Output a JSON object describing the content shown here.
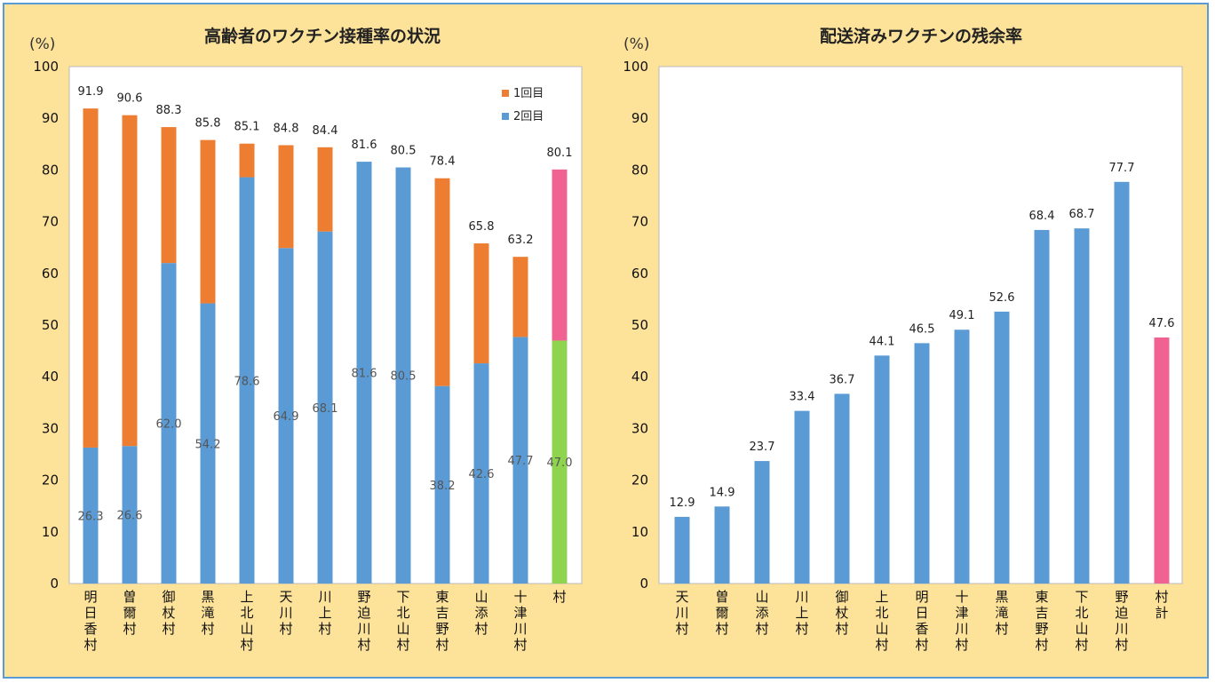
{
  "colors": {
    "background": "#fde29a",
    "border": "#5b9bd5",
    "dose1": "#ed7d31",
    "dose2": "#5b9bd5",
    "village_dose1": "#f06292",
    "village_dose2": "#8ed44f",
    "total_bar": "#f06292"
  },
  "chart_data": [
    {
      "type": "bar",
      "stacked": true,
      "title": "高齢者のワクチン接種率の状況",
      "ylabel": "(%)",
      "ylim": [
        0,
        100
      ],
      "yticks": [
        "0",
        "10",
        "20",
        "30",
        "40",
        "50",
        "60",
        "70",
        "80",
        "90",
        "100"
      ],
      "grid": false,
      "legend_position": "top-right",
      "categories": [
        "明日香村",
        "曽爾村",
        "御杖村",
        "黒滝村",
        "上北山村",
        "天川村",
        "川上村",
        "野迫川村",
        "下北山村",
        "東吉野村",
        "山添村",
        "十津川村",
        "村"
      ],
      "totals": [
        91.9,
        90.6,
        88.3,
        85.8,
        85.1,
        84.8,
        84.4,
        81.6,
        80.5,
        78.4,
        65.8,
        63.2,
        80.1
      ],
      "total_labels": [
        "91.9",
        "90.6",
        "88.3",
        "85.8",
        "85.1",
        "84.8",
        "84.4",
        "81.6",
        "80.5",
        "78.4",
        "65.8",
        "63.2",
        "80.1"
      ],
      "series": [
        {
          "name": "2回目",
          "values": [
            26.3,
            26.6,
            62.0,
            54.2,
            78.6,
            64.9,
            68.1,
            81.6,
            80.5,
            38.2,
            42.6,
            47.7,
            47.0
          ],
          "labels": [
            "26.3",
            "26.6",
            "62.0",
            "54.2",
            "78.6",
            "64.9",
            "68.1",
            "81.6",
            "80.5",
            "38.2",
            "42.6",
            "47.7",
            "47.0"
          ]
        },
        {
          "name": "1回目",
          "values": [
            65.6,
            64.0,
            26.3,
            31.6,
            6.5,
            19.9,
            16.3,
            0,
            0,
            40.2,
            23.2,
            15.5,
            33.1
          ]
        }
      ]
    },
    {
      "type": "bar",
      "title": "配送済みワクチンの残余率",
      "ylabel": "(%)",
      "ylim": [
        0,
        100
      ],
      "yticks": [
        "0",
        "10",
        "20",
        "30",
        "40",
        "50",
        "60",
        "70",
        "80",
        "90",
        "100"
      ],
      "grid": false,
      "categories": [
        "天川村",
        "曽爾村",
        "山添村",
        "川上村",
        "御杖村",
        "上北山村",
        "明日香村",
        "十津川村",
        "黒滝村",
        "東吉野村",
        "下北山村",
        "野迫川村",
        "村計"
      ],
      "values": [
        12.9,
        14.9,
        23.7,
        33.4,
        36.7,
        44.1,
        46.5,
        49.1,
        52.6,
        68.4,
        68.7,
        77.7,
        47.6
      ],
      "value_labels": [
        "12.9",
        "14.9",
        "23.7",
        "33.4",
        "36.7",
        "44.1",
        "46.5",
        "49.1",
        "52.6",
        "68.4",
        "68.7",
        "77.7",
        "47.6"
      ]
    }
  ]
}
